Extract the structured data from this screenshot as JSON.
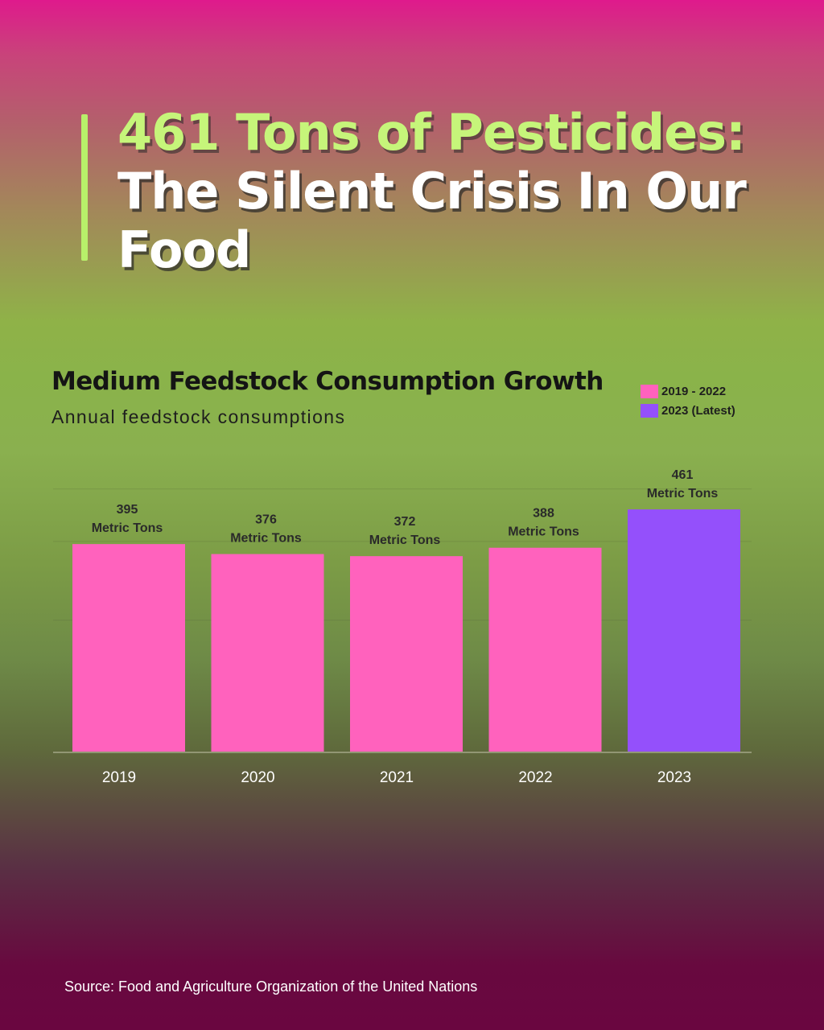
{
  "headline": {
    "line1": "461 Tons of Pesticides:",
    "line2": "The Silent Crisis In Our Food"
  },
  "colors": {
    "accent": "#b8f06a",
    "bar_past": "#ff62bd",
    "bar_latest": "#9450fb"
  },
  "chart_data": {
    "type": "bar",
    "title": "Medium Feedstock Consumption Growth",
    "subtitle": "Annual feedstock consumptions",
    "categories": [
      "2019",
      "2020",
      "2021",
      "2022",
      "2023"
    ],
    "values": [
      395,
      376,
      372,
      388,
      461
    ],
    "value_labels": [
      [
        "395",
        "Metric Tons"
      ],
      [
        "376",
        "Metric Tons"
      ],
      [
        "372",
        "Metric Tons"
      ],
      [
        "388",
        "Metric Tons"
      ],
      [
        "461",
        "Metric Tons"
      ]
    ],
    "series_group": [
      "2019 - 2022",
      "2019 - 2022",
      "2019 - 2022",
      "2019 - 2022",
      "2023 (Latest)"
    ],
    "legend": [
      "2019 - 2022",
      "2023 (Latest)"
    ],
    "legend_position": "top-right",
    "ylim": [
      0,
      530
    ],
    "grid": true
  },
  "source": "Source: Food and Agriculture Organization of the United Nations"
}
